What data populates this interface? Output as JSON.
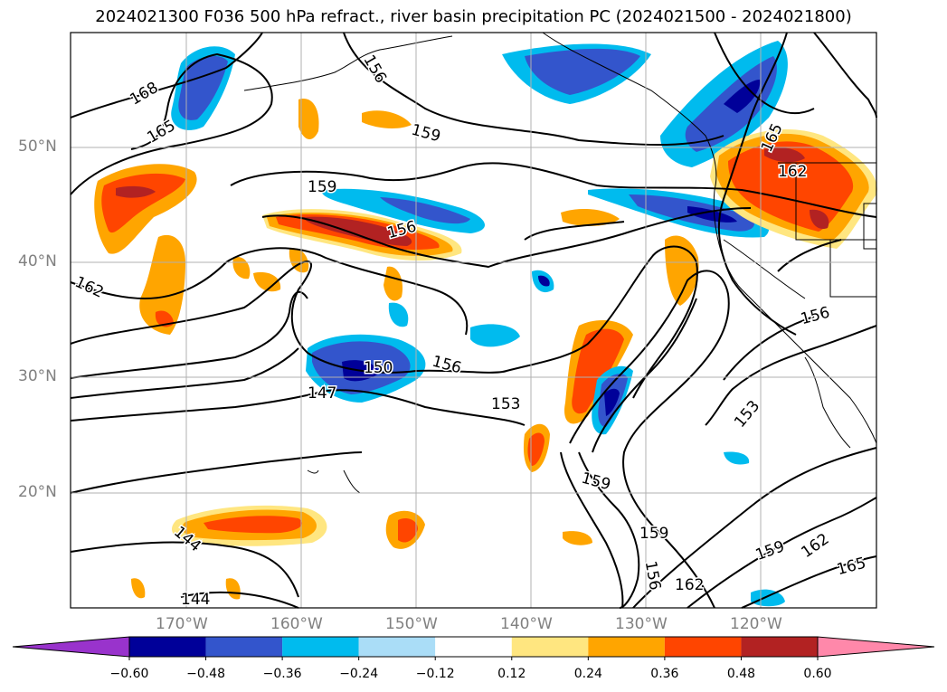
{
  "title": "2024021300 F036 500 hPa refract., river basin precipitation PC (2024021500 - 2024021800)",
  "latitude_labels": [
    "50°N",
    "40°N",
    "30°N",
    "20°N"
  ],
  "longitude_labels": [
    "170°W",
    "160°W",
    "150°W",
    "140°W",
    "130°W",
    "120°W"
  ],
  "colorbar": {
    "ticks": [
      "−0.60",
      "−0.48",
      "−0.36",
      "−0.24",
      "−0.12",
      "0.12",
      "0.24",
      "0.36",
      "0.48",
      "0.60"
    ],
    "colors": [
      "#9933cc",
      "#000099",
      "#3355cc",
      "#00bbee",
      "#aaddf7",
      "#ffffff",
      "#ffe680",
      "#ffa500",
      "#ff4500",
      "#b22222",
      "#ff88aa"
    ]
  },
  "contour_labels": [
    {
      "text": "168"
    },
    {
      "text": "165"
    },
    {
      "text": "162"
    },
    {
      "text": "159"
    },
    {
      "text": "156"
    },
    {
      "text": "159"
    },
    {
      "text": "156"
    },
    {
      "text": "156"
    },
    {
      "text": "150"
    },
    {
      "text": "147"
    },
    {
      "text": "153"
    },
    {
      "text": "159"
    },
    {
      "text": "165"
    },
    {
      "text": "162"
    },
    {
      "text": "156"
    },
    {
      "text": "153"
    },
    {
      "text": "159"
    },
    {
      "text": "156"
    },
    {
      "text": "162"
    },
    {
      "text": "159"
    },
    {
      "text": "162"
    },
    {
      "text": "165"
    },
    {
      "text": "144"
    },
    {
      "text": "144"
    }
  ]
}
